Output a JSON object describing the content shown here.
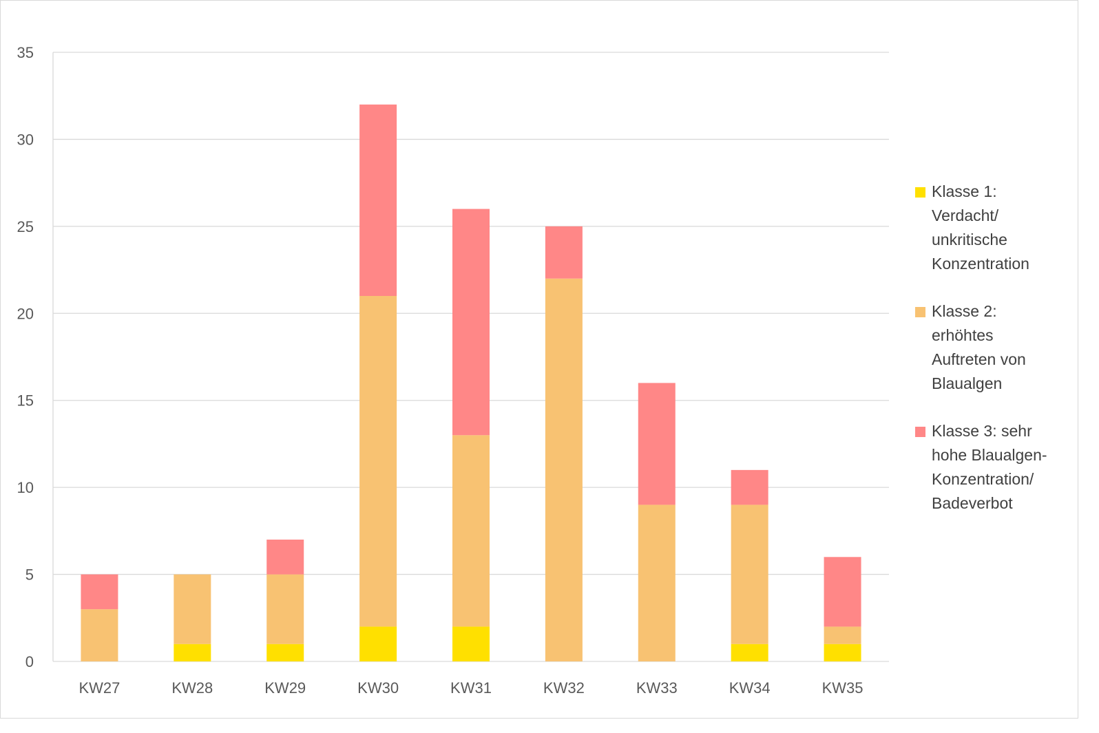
{
  "chart_data": {
    "type": "bar",
    "stacked": true,
    "categories": [
      "KW27",
      "KW28",
      "KW29",
      "KW30",
      "KW31",
      "KW32",
      "KW33",
      "KW34",
      "KW35"
    ],
    "series": [
      {
        "name": "Klasse 1: Verdacht/ unkritische Konzentration",
        "color": "#ffe000",
        "values": [
          0,
          1,
          1,
          2,
          2,
          0,
          0,
          1,
          1
        ]
      },
      {
        "name": "Klasse 2: erhöhtes Auftreten von Blaualgen",
        "color": "#f8c272",
        "values": [
          3,
          4,
          4,
          19,
          11,
          22,
          9,
          8,
          1
        ]
      },
      {
        "name": "Klasse 3: sehr hohe Blaualgen-Konzentration/ Badeverbot",
        "color": "#ff8787",
        "values": [
          2,
          0,
          2,
          11,
          13,
          3,
          7,
          2,
          4
        ]
      }
    ],
    "yticks": [
      "0",
      "5",
      "10",
      "15",
      "20",
      "25",
      "30",
      "35"
    ],
    "ylim": [
      0,
      35
    ],
    "grid": true,
    "legend_position": "right",
    "title": "",
    "xlabel": "",
    "ylabel": ""
  },
  "legend": {
    "items": [
      {
        "lines": [
          "Klasse 1:",
          "Verdacht/",
          "unkritische",
          "Konzentration"
        ]
      },
      {
        "lines": [
          "Klasse 2:",
          "erhöhtes",
          "Auftreten von",
          "Blaualgen"
        ]
      },
      {
        "lines": [
          "Klasse 3: sehr",
          "hohe Blaualgen-",
          "Konzentration/",
          "Badeverbot"
        ]
      }
    ]
  }
}
